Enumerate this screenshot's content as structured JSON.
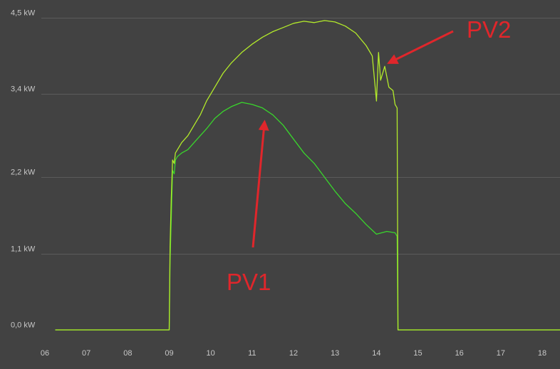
{
  "chart_data": {
    "type": "line",
    "xlabel": "",
    "ylabel": "",
    "xlim": [
      6,
      18.5
    ],
    "ylim": [
      0,
      4.5
    ],
    "grid": "horizontal",
    "x_ticks": [
      {
        "value": 6,
        "label": "06"
      },
      {
        "value": 7,
        "label": "07"
      },
      {
        "value": 8,
        "label": "08"
      },
      {
        "value": 9,
        "label": "09"
      },
      {
        "value": 10,
        "label": "10"
      },
      {
        "value": 11,
        "label": "11"
      },
      {
        "value": 12,
        "label": "12"
      },
      {
        "value": 13,
        "label": "13"
      },
      {
        "value": 14,
        "label": "14"
      },
      {
        "value": 15,
        "label": "15"
      },
      {
        "value": 16,
        "label": "16"
      },
      {
        "value": 17,
        "label": "17"
      },
      {
        "value": 18,
        "label": "18"
      }
    ],
    "y_ticks": [
      {
        "value": 0.0,
        "label": "0,0 kW"
      },
      {
        "value": 1.1,
        "label": "1,1 kW"
      },
      {
        "value": 2.2,
        "label": "2,2 kW"
      },
      {
        "value": 3.4,
        "label": "3,4 kW"
      },
      {
        "value": 4.5,
        "label": "4,5 kW"
      }
    ],
    "series": [
      {
        "name": "PV1",
        "color": "#39d62c",
        "x": [
          6.25,
          9.0,
          9.02,
          9.05,
          9.08,
          9.12,
          9.15,
          9.2,
          9.3,
          9.45,
          9.6,
          9.75,
          9.9,
          10.1,
          10.3,
          10.5,
          10.75,
          11.0,
          11.25,
          11.5,
          11.75,
          12.0,
          12.25,
          12.5,
          12.75,
          13.0,
          13.25,
          13.5,
          13.75,
          14.0,
          14.25,
          14.45,
          14.5,
          14.52,
          18.5
        ],
        "values": [
          0.0,
          0.0,
          1.0,
          1.6,
          2.3,
          2.25,
          2.45,
          2.5,
          2.55,
          2.6,
          2.7,
          2.8,
          2.9,
          3.05,
          3.15,
          3.22,
          3.28,
          3.25,
          3.2,
          3.1,
          2.95,
          2.75,
          2.55,
          2.4,
          2.2,
          2.0,
          1.82,
          1.68,
          1.52,
          1.38,
          1.42,
          1.4,
          1.35,
          0.0,
          0.0
        ]
      },
      {
        "name": "PV2",
        "color": "#b3eb2a",
        "x": [
          6.25,
          9.0,
          9.02,
          9.05,
          9.08,
          9.12,
          9.15,
          9.2,
          9.3,
          9.45,
          9.6,
          9.75,
          9.9,
          10.1,
          10.3,
          10.5,
          10.75,
          11.0,
          11.25,
          11.5,
          11.75,
          12.0,
          12.25,
          12.5,
          12.75,
          13.0,
          13.25,
          13.5,
          13.75,
          13.9,
          14.0,
          14.05,
          14.1,
          14.2,
          14.3,
          14.4,
          14.45,
          14.5,
          14.52,
          18.5
        ],
        "values": [
          0.0,
          0.0,
          1.2,
          1.9,
          2.45,
          2.4,
          2.55,
          2.6,
          2.7,
          2.8,
          2.95,
          3.1,
          3.3,
          3.5,
          3.7,
          3.85,
          4.0,
          4.12,
          4.22,
          4.3,
          4.36,
          4.42,
          4.45,
          4.43,
          4.46,
          4.44,
          4.38,
          4.28,
          4.1,
          3.95,
          3.3,
          4.0,
          3.6,
          3.8,
          3.5,
          3.45,
          3.25,
          3.2,
          0.0,
          0.0
        ]
      }
    ],
    "annotations": [
      {
        "text": "PV2",
        "points_to_x": 14.3,
        "points_to_y": 3.85
      },
      {
        "text": "PV1",
        "points_to_x": 11.3,
        "points_to_y": 3.0
      }
    ]
  }
}
